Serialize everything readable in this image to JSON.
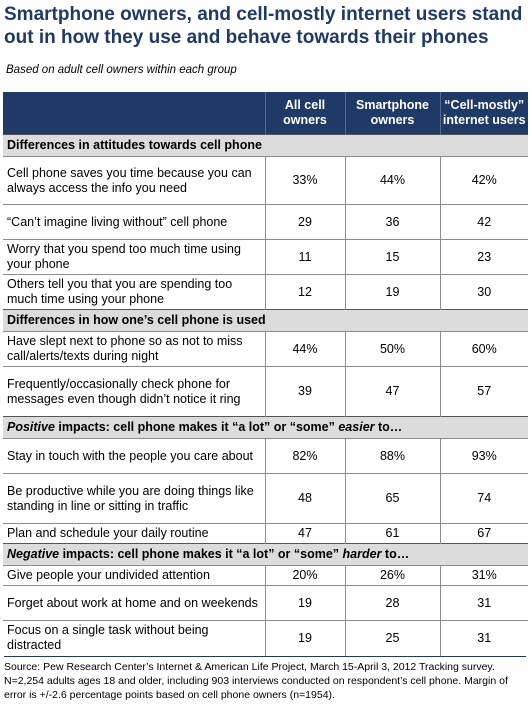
{
  "title": "Smartphone owners, and cell-mostly internet users stand out in how they use and behave towards their phones",
  "subtitle": "Based on adult cell owners within each group",
  "columns": [
    "",
    "All cell owners",
    "Smartphone owners",
    "“Cell-mostly” internet users"
  ],
  "sections": [
    {
      "heading": "Differences in attitudes towards cell phone",
      "rows": [
        {
          "label": "Cell phone saves you time because you can always access the info you need",
          "values": [
            "33%",
            "44%",
            "42%"
          ]
        },
        {
          "label": "“Can’t imagine living without” cell phone",
          "values": [
            "29",
            "36",
            "42"
          ]
        },
        {
          "label": "Worry that you spend too much time using your phone",
          "values": [
            "11",
            "15",
            "23"
          ]
        },
        {
          "label": "Others tell you that you are spending too much time using your phone",
          "values": [
            "12",
            "19",
            "30"
          ]
        }
      ]
    },
    {
      "heading": "Differences in how one’s cell phone is used",
      "rows": [
        {
          "label": "Have slept next to phone so as not to miss call/alerts/texts during night",
          "values": [
            "44%",
            "50%",
            "60%"
          ]
        },
        {
          "label": "Frequently/occasionally check phone for messages even though didn’t notice it ring",
          "values": [
            "39",
            "47",
            "57"
          ]
        }
      ]
    },
    {
      "heading_prefix": "Positive",
      "heading_mid": " impacts: cell phone makes it “a lot” or “some” ",
      "heading_em": "easier",
      "heading_suffix": " to…",
      "rows": [
        {
          "label": "Stay in touch with the people you care about",
          "values": [
            "82%",
            "88%",
            "93%"
          ]
        },
        {
          "label": "Be productive while you are doing things like standing in line or sitting in traffic",
          "values": [
            "48",
            "65",
            "74"
          ]
        },
        {
          "label": "Plan and schedule your daily routine",
          "values": [
            "47",
            "61",
            "67"
          ]
        }
      ]
    },
    {
      "heading_prefix": "Negative",
      "heading_mid": " impacts: cell phone makes it “a lot” or “some” ",
      "heading_em": "harder",
      "heading_suffix": " to…",
      "rows": [
        {
          "label": "Give people your undivided attention",
          "values": [
            "20%",
            "26%",
            "31%"
          ]
        },
        {
          "label": "Forget about work at home and on weekends",
          "values": [
            "19",
            "28",
            "31"
          ]
        },
        {
          "label": "Focus on a single task without being distracted",
          "values": [
            "19",
            "25",
            "31"
          ]
        }
      ]
    }
  ],
  "source": "Source: Pew Research Center’s Internet & American Life Project, March 15-April 3, 2012 Tracking survey. N=2,254 adults ages 18 and older, including 903 interviews conducted on respondent’s cell phone. Margin of error is +/-2.6 percentage points based on cell phone owners (n=1954)."
}
